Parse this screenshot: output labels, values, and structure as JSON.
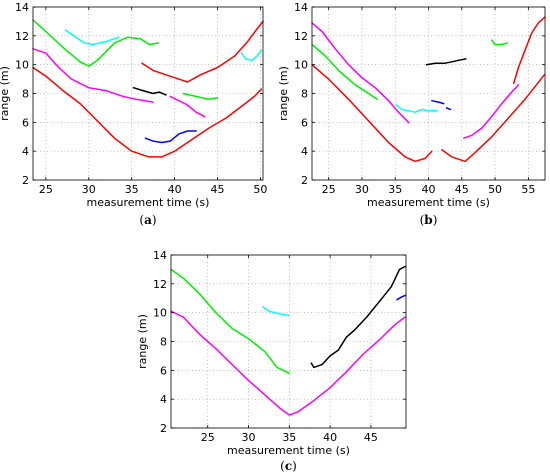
{
  "chart_data": [
    {
      "type": "line",
      "caption_open": "(",
      "caption_letter": "a",
      "caption_close": ")",
      "xlabel": "measurement time (s)",
      "ylabel": "range (m)",
      "xlim": [
        23.5,
        50.3
      ],
      "ylim": [
        2,
        14
      ],
      "xticks": [
        25,
        30,
        35,
        40,
        45,
        50
      ],
      "yticks": [
        2,
        4,
        6,
        8,
        10,
        12,
        14
      ],
      "grid": true,
      "series": [
        {
          "color": "#ff0000",
          "points": [
            [
              23.5,
              9.8
            ],
            [
              25,
              9.2
            ],
            [
              27,
              8.2
            ],
            [
              29,
              7.3
            ],
            [
              31,
              6.1
            ],
            [
              33,
              4.9
            ],
            [
              35,
              4.0
            ],
            [
              37,
              3.6
            ],
            [
              38.5,
              3.6
            ],
            [
              40,
              4.0
            ],
            [
              42,
              4.8
            ],
            [
              44,
              5.6
            ],
            [
              46,
              6.3
            ],
            [
              48,
              7.2
            ],
            [
              49.3,
              7.8
            ],
            [
              50.1,
              8.3
            ]
          ]
        },
        {
          "color": "#ff0000",
          "points": [
            [
              36.2,
              10.1
            ],
            [
              37.5,
              9.6
            ],
            [
              39,
              9.3
            ],
            [
              40.5,
              9.0
            ],
            [
              41.5,
              8.8
            ],
            [
              43,
              9.3
            ],
            [
              45,
              9.8
            ],
            [
              47,
              10.6
            ],
            [
              48.5,
              11.6
            ],
            [
              49.5,
              12.4
            ],
            [
              50.3,
              13.0
            ]
          ]
        },
        {
          "color": "#00ee00",
          "points": [
            [
              23.5,
              13.1
            ],
            [
              25,
              12.3
            ],
            [
              27,
              11.2
            ],
            [
              29,
              10.2
            ],
            [
              30,
              9.9
            ],
            [
              31,
              10.3
            ],
            [
              32,
              10.9
            ],
            [
              33,
              11.5
            ],
            [
              34.5,
              11.9
            ],
            [
              36,
              11.8
            ],
            [
              37.1,
              11.4
            ],
            [
              38.1,
              11.5
            ]
          ]
        },
        {
          "color": "#00ee00",
          "points": [
            [
              41,
              8.0
            ],
            [
              42.5,
              7.8
            ],
            [
              44,
              7.6
            ],
            [
              45,
              7.7
            ]
          ]
        },
        {
          "color": "#00ffff",
          "points": [
            [
              27.3,
              12.4
            ],
            [
              28.5,
              11.9
            ],
            [
              29.5,
              11.5
            ],
            [
              30.5,
              11.4
            ],
            [
              32,
              11.6
            ],
            [
              33.5,
              11.9
            ]
          ]
        },
        {
          "color": "#00ffff",
          "points": [
            [
              47.8,
              10.8
            ],
            [
              48.3,
              10.4
            ],
            [
              49,
              10.3
            ],
            [
              49.6,
              10.6
            ],
            [
              50.1,
              11.0
            ]
          ]
        },
        {
          "color": "#ff00ff",
          "points": [
            [
              23.5,
              11.1
            ],
            [
              25,
              10.8
            ],
            [
              26.5,
              9.8
            ],
            [
              28,
              9.0
            ],
            [
              30,
              8.4
            ],
            [
              32,
              8.2
            ],
            [
              34,
              7.8
            ],
            [
              35.5,
              7.6
            ],
            [
              37.5,
              7.4
            ]
          ]
        },
        {
          "color": "#ff00ff",
          "points": [
            [
              39.5,
              7.8
            ],
            [
              40.5,
              7.5
            ],
            [
              41.5,
              7.2
            ],
            [
              42.5,
              6.7
            ],
            [
              43.5,
              6.4
            ]
          ]
        },
        {
          "color": "#000000",
          "points": [
            [
              35.2,
              8.4
            ],
            [
              36.3,
              8.2
            ],
            [
              37.5,
              8.0
            ],
            [
              38.2,
              8.1
            ],
            [
              39,
              7.9
            ]
          ]
        },
        {
          "color": "#0000ff",
          "points": [
            [
              36.6,
              4.9
            ],
            [
              37.5,
              4.7
            ],
            [
              38.5,
              4.6
            ],
            [
              39.5,
              4.7
            ],
            [
              40.5,
              5.2
            ],
            [
              41.5,
              5.4
            ],
            [
              42.5,
              5.4
            ]
          ]
        }
      ]
    },
    {
      "type": "line",
      "caption_open": "(",
      "caption_letter": "b",
      "caption_close": ")",
      "xlabel": "measurement time (s)",
      "ylabel": "range (m)",
      "xlim": [
        22.5,
        57.5
      ],
      "ylim": [
        2,
        14
      ],
      "xticks": [
        25,
        30,
        35,
        40,
        45,
        50,
        55
      ],
      "yticks": [
        2,
        4,
        6,
        8,
        10,
        12,
        14
      ],
      "grid": true,
      "series": [
        {
          "color": "#ff0000",
          "points": [
            [
              22.5,
              10.0
            ],
            [
              25,
              9.0
            ],
            [
              28,
              7.6
            ],
            [
              31,
              6.1
            ],
            [
              34,
              4.6
            ],
            [
              36.5,
              3.6
            ],
            [
              38,
              3.3
            ],
            [
              39.5,
              3.5
            ],
            [
              40.5,
              4.0
            ]
          ]
        },
        {
          "color": "#ff0000",
          "points": [
            [
              42,
              4.1
            ],
            [
              43.5,
              3.6
            ],
            [
              45.5,
              3.3
            ],
            [
              47,
              3.9
            ],
            [
              49.5,
              5.0
            ],
            [
              52,
              6.3
            ],
            [
              54.5,
              7.6
            ],
            [
              57.4,
              9.3
            ]
          ]
        },
        {
          "color": "#ff0000",
          "points": [
            [
              52.8,
              8.7
            ],
            [
              53.5,
              9.8
            ],
            [
              54.5,
              11.0
            ],
            [
              55.5,
              12.2
            ],
            [
              56.5,
              12.9
            ],
            [
              57.5,
              13.3
            ]
          ]
        },
        {
          "color": "#00ee00",
          "points": [
            [
              22.5,
              11.4
            ],
            [
              24.5,
              10.6
            ],
            [
              26.5,
              9.6
            ],
            [
              29,
              8.6
            ],
            [
              31,
              8.0
            ],
            [
              32.3,
              7.6
            ]
          ]
        },
        {
          "color": "#00ee00",
          "points": [
            [
              49.5,
              11.7
            ],
            [
              50,
              11.4
            ],
            [
              51,
              11.4
            ],
            [
              51.8,
              11.5
            ]
          ]
        },
        {
          "color": "#ff00ff",
          "points": [
            [
              22.5,
              12.9
            ],
            [
              24,
              12.3
            ],
            [
              26,
              11.1
            ],
            [
              28,
              10.0
            ],
            [
              30,
              9.1
            ],
            [
              32,
              8.4
            ],
            [
              34,
              7.5
            ],
            [
              35.5,
              6.7
            ],
            [
              37,
              6.0
            ]
          ]
        },
        {
          "color": "#ff00ff",
          "points": [
            [
              45.3,
              4.9
            ],
            [
              46.5,
              5.1
            ],
            [
              48,
              5.6
            ],
            [
              49.5,
              6.4
            ],
            [
              51,
              7.3
            ],
            [
              52.5,
              8.1
            ],
            [
              53.5,
              8.6
            ]
          ]
        },
        {
          "color": "#00ffff",
          "points": [
            [
              35.2,
              7.2
            ],
            [
              36,
              6.9
            ],
            [
              37,
              6.8
            ],
            [
              38,
              6.7
            ],
            [
              39,
              6.9
            ],
            [
              40,
              6.8
            ],
            [
              41.3,
              6.8
            ]
          ]
        },
        {
          "color": "#000000",
          "points": [
            [
              39.7,
              10.0
            ],
            [
              41,
              10.1
            ],
            [
              42.5,
              10.1
            ],
            [
              43.5,
              10.2
            ],
            [
              44.5,
              10.3
            ],
            [
              45.6,
              10.4
            ]
          ]
        },
        {
          "color": "#0000ff",
          "points": [
            [
              40.5,
              7.5
            ],
            [
              41.5,
              7.4
            ],
            [
              42.3,
              7.3
            ]
          ]
        },
        {
          "color": "#0000ff",
          "points": [
            [
              42.7,
              7.0
            ],
            [
              43.3,
              6.9
            ]
          ]
        }
      ]
    },
    {
      "type": "line",
      "caption_open": "(",
      "caption_letter": "c",
      "caption_close": ")",
      "xlabel": "measurement time (s)",
      "ylabel": "range (m)",
      "xlim": [
        20.5,
        49.3
      ],
      "ylim": [
        2,
        14
      ],
      "xticks": [
        25,
        30,
        35,
        40,
        45
      ],
      "yticks": [
        2,
        4,
        6,
        8,
        10,
        12,
        14
      ],
      "grid": true,
      "series": [
        {
          "color": "#00ee00",
          "points": [
            [
              20.5,
              13.0
            ],
            [
              22,
              12.4
            ],
            [
              24,
              11.3
            ],
            [
              26,
              10.0
            ],
            [
              28,
              8.9
            ],
            [
              30,
              8.2
            ],
            [
              32,
              7.3
            ],
            [
              33.5,
              6.2
            ],
            [
              35,
              5.8
            ]
          ]
        },
        {
          "color": "#ff00ff",
          "points": [
            [
              20.5,
              10.1
            ],
            [
              22,
              9.7
            ],
            [
              24,
              8.5
            ],
            [
              26,
              7.5
            ],
            [
              28,
              6.4
            ],
            [
              30,
              5.3
            ],
            [
              32,
              4.3
            ],
            [
              34,
              3.3
            ],
            [
              35,
              2.9
            ],
            [
              36,
              3.1
            ],
            [
              38,
              3.9
            ],
            [
              40,
              4.8
            ],
            [
              42,
              5.9
            ],
            [
              44,
              7.1
            ],
            [
              46,
              8.1
            ],
            [
              48,
              9.2
            ],
            [
              49.2,
              9.7
            ]
          ]
        },
        {
          "color": "#00ffff",
          "points": [
            [
              31.8,
              10.4
            ],
            [
              32.5,
              10.1
            ],
            [
              34,
              9.9
            ],
            [
              35,
              9.8
            ]
          ]
        },
        {
          "color": "#000000",
          "points": [
            [
              37.7,
              6.5
            ],
            [
              38,
              6.2
            ],
            [
              39,
              6.4
            ],
            [
              40,
              7.0
            ],
            [
              41,
              7.4
            ],
            [
              42,
              8.3
            ],
            [
              43,
              8.8
            ],
            [
              44.5,
              9.7
            ],
            [
              45.5,
              10.4
            ],
            [
              46.5,
              11.1
            ],
            [
              47.5,
              11.8
            ],
            [
              48.5,
              13.0
            ],
            [
              49.2,
              13.2
            ]
          ]
        },
        {
          "color": "#0000ff",
          "points": [
            [
              48.2,
              10.9
            ],
            [
              48.8,
              11.1
            ],
            [
              49.2,
              11.2
            ]
          ]
        }
      ]
    }
  ]
}
